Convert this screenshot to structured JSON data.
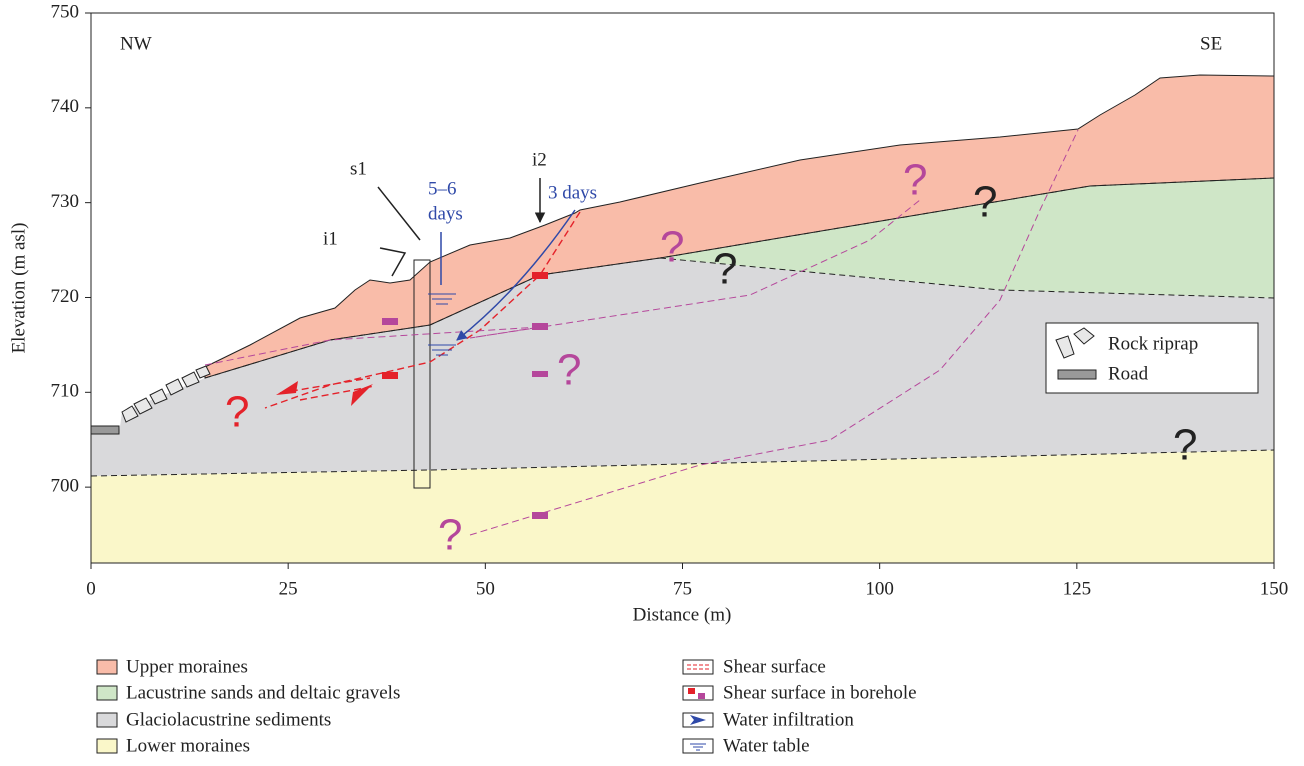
{
  "axes": {
    "x_label": "Distance (m)",
    "y_label": "Elevation (m asl)",
    "xlim": [
      0,
      150
    ],
    "xticks": [
      0,
      25,
      50,
      75,
      100,
      125,
      150
    ],
    "ylim": [
      692,
      750
    ],
    "yticks": [
      700,
      710,
      720,
      730,
      740,
      750
    ]
  },
  "annotations": {
    "nw": "NW",
    "se": "SE",
    "i1": "i1",
    "s1": "s1",
    "i2": "i2",
    "infiltration_1": [
      "5–6",
      "days"
    ],
    "infiltration_2": "3 days",
    "question_marks": [
      "?",
      "?",
      "?",
      "?",
      "?",
      "?",
      "?",
      "?"
    ]
  },
  "legend_inset": [
    "Rock riprap",
    "Road"
  ],
  "legend": [
    "Upper moraines",
    "Lacustrine sands and deltaic gravels",
    "Glaciolacustrine sediments",
    "Lower moraines",
    "Shear surface",
    "Shear surface in borehole",
    "Water infiltration",
    "Water table"
  ]
}
